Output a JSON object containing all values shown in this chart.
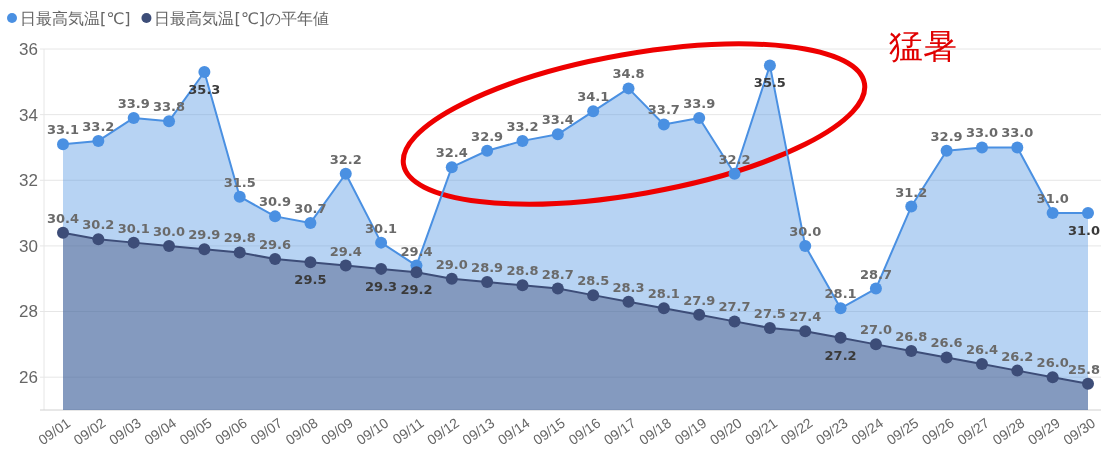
{
  "chart_data": {
    "type": "area",
    "categories": [
      "09/01",
      "09/02",
      "09/03",
      "09/04",
      "09/05",
      "09/06",
      "09/07",
      "09/08",
      "09/09",
      "09/10",
      "09/11",
      "09/12",
      "09/13",
      "09/14",
      "09/15",
      "09/16",
      "09/17",
      "09/18",
      "09/19",
      "09/20",
      "09/21",
      "09/22",
      "09/23",
      "09/24",
      "09/25",
      "09/26",
      "09/27",
      "09/28",
      "09/29",
      "09/30"
    ],
    "series": [
      {
        "name": "日最高気温[℃]",
        "color": "#4a90e2",
        "values": [
          33.1,
          33.2,
          33.9,
          33.8,
          35.3,
          31.5,
          30.9,
          30.7,
          32.2,
          30.1,
          29.4,
          32.4,
          32.9,
          33.2,
          33.4,
          34.1,
          34.8,
          33.7,
          33.9,
          32.2,
          35.5,
          30.0,
          28.1,
          28.7,
          31.2,
          32.9,
          33.0,
          33.0,
          31.0,
          31.0
        ],
        "value_labels": [
          "33.1",
          "33.2",
          "33.9",
          "33.8",
          "35.3",
          "31.5",
          "30.9",
          "30.7",
          "32.2",
          "30.1",
          "29.4",
          "32.4",
          "32.9",
          "33.2",
          "33.4",
          "34.1",
          "34.8",
          "33.7",
          "33.9",
          "32.2",
          "35.5",
          "30.0",
          "28.1",
          "28.7",
          "31.2",
          "32.9",
          "33.0",
          "33.0",
          "31.0",
          "31.0"
        ]
      },
      {
        "name": "日最高気温[℃]の平年値",
        "color": "#3d4d78",
        "values": [
          30.4,
          30.2,
          30.1,
          30.0,
          29.9,
          29.8,
          29.6,
          29.5,
          29.4,
          29.3,
          29.2,
          29.0,
          28.9,
          28.8,
          28.7,
          28.5,
          28.3,
          28.1,
          27.9,
          27.7,
          27.5,
          27.4,
          27.2,
          27.0,
          26.8,
          26.6,
          26.4,
          26.2,
          26.0,
          25.8
        ],
        "value_labels": [
          "30.4",
          "30.2",
          "30.1",
          "30.0",
          "29.9",
          "29.8",
          "29.6",
          "29.5",
          "29.4",
          "29.3",
          "29.2",
          "29.0",
          "28.9",
          "28.8",
          "28.7",
          "28.5",
          "28.3",
          "28.1",
          "27.9",
          "27.7",
          "27.5",
          "27.4",
          "27.2",
          "27.0",
          "26.8",
          "26.6",
          "26.4",
          "26.2",
          "26.0",
          "25.8"
        ]
      }
    ],
    "ylim": [
      25,
      36
    ],
    "yticks": [
      26,
      28,
      30,
      32,
      34,
      36
    ],
    "grid": "y",
    "legend": "top left",
    "marker": "circle",
    "annotations": [
      "猛暑"
    ]
  }
}
